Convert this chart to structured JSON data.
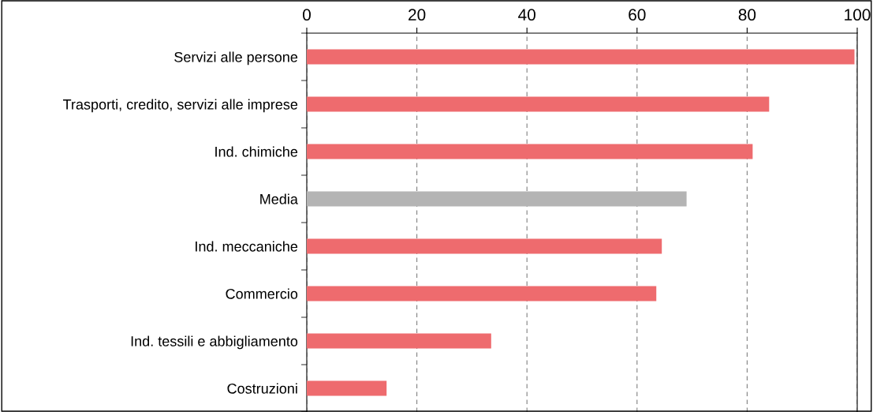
{
  "chart_data": {
    "type": "bar",
    "orientation": "horizontal",
    "categories": [
      "Servizi alle persone",
      "Trasporti, credito, servizi alle imprese",
      "Ind. chimiche",
      "Media",
      "Ind. meccaniche",
      "Commercio",
      "Ind. tessili e abbigliamento",
      "Costruzioni"
    ],
    "values": [
      99.5,
      84,
      81,
      69,
      64.5,
      63.5,
      33.5,
      14.5
    ],
    "colors": [
      "#ee6b6e",
      "#ee6b6e",
      "#ee6b6e",
      "#b4b4b4",
      "#ee6b6e",
      "#ee6b6e",
      "#ee6b6e",
      "#ee6b6e"
    ],
    "xlim": [
      0,
      100
    ],
    "xticks": [
      0,
      20,
      40,
      60,
      80,
      100
    ],
    "grid": "x"
  }
}
